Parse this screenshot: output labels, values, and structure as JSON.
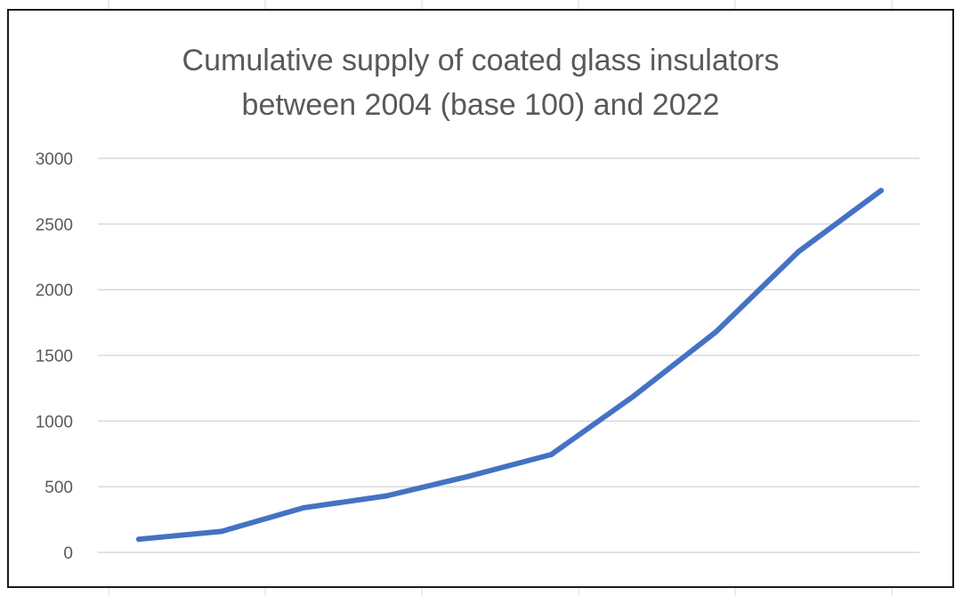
{
  "chart_data": {
    "type": "line",
    "title_lines": [
      "Cumulative supply of coated glass insulators",
      "between 2004 (base 100) and 2022"
    ],
    "xlabel": "",
    "ylabel": "",
    "ylim": [
      0,
      3000
    ],
    "y_ticks": [
      "0",
      "500",
      "1000",
      "1500",
      "2000",
      "2500",
      "3000"
    ],
    "y_tick_values": [
      0,
      500,
      1000,
      1500,
      2000,
      2500,
      3000
    ],
    "grid": true,
    "legend": "none",
    "series": [
      {
        "color": "#4472C4",
        "values": [
          100,
          160,
          340,
          430,
          580,
          745,
          1190,
          1680,
          2290,
          2755
        ]
      }
    ]
  }
}
